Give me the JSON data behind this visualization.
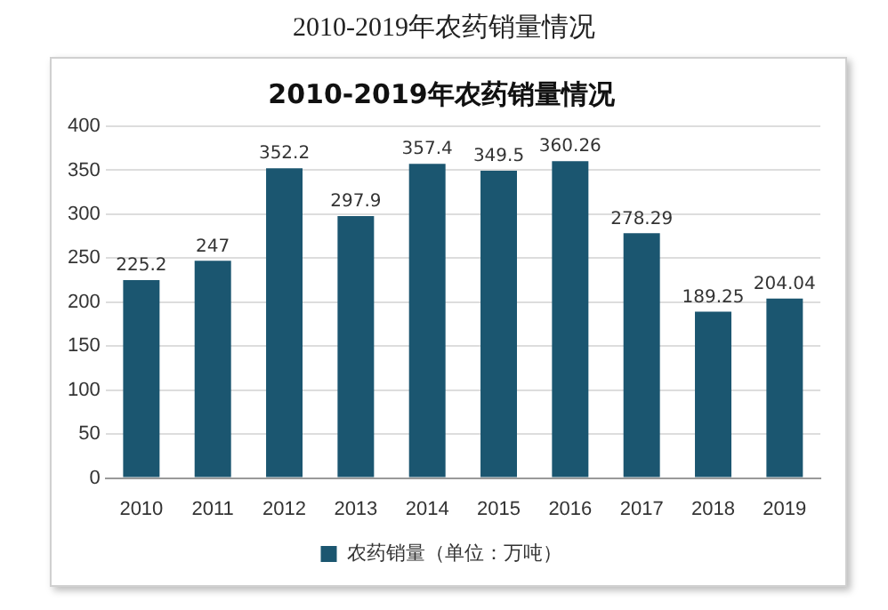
{
  "chart_data": {
    "type": "bar",
    "title": "2010-2019年农药销量情况",
    "annotations": [
      "2010-2019年农药销量情况"
    ],
    "categories": [
      "2010",
      "2011",
      "2012",
      "2013",
      "2014",
      "2015",
      "2016",
      "2017",
      "2018",
      "2019"
    ],
    "series": [
      {
        "name": "农药销量（单位：万吨）",
        "color": "#1b5670",
        "values": [
          225.2,
          247,
          352.2,
          297.9,
          357.4,
          349.5,
          360.26,
          278.29,
          189.25,
          204.04
        ]
      }
    ],
    "ylim": [
      0,
      400
    ],
    "yticks": [
      0,
      50,
      100,
      150,
      200,
      250,
      300,
      350,
      400
    ],
    "grid": "y",
    "legend": "bottom",
    "data_labels": true
  }
}
